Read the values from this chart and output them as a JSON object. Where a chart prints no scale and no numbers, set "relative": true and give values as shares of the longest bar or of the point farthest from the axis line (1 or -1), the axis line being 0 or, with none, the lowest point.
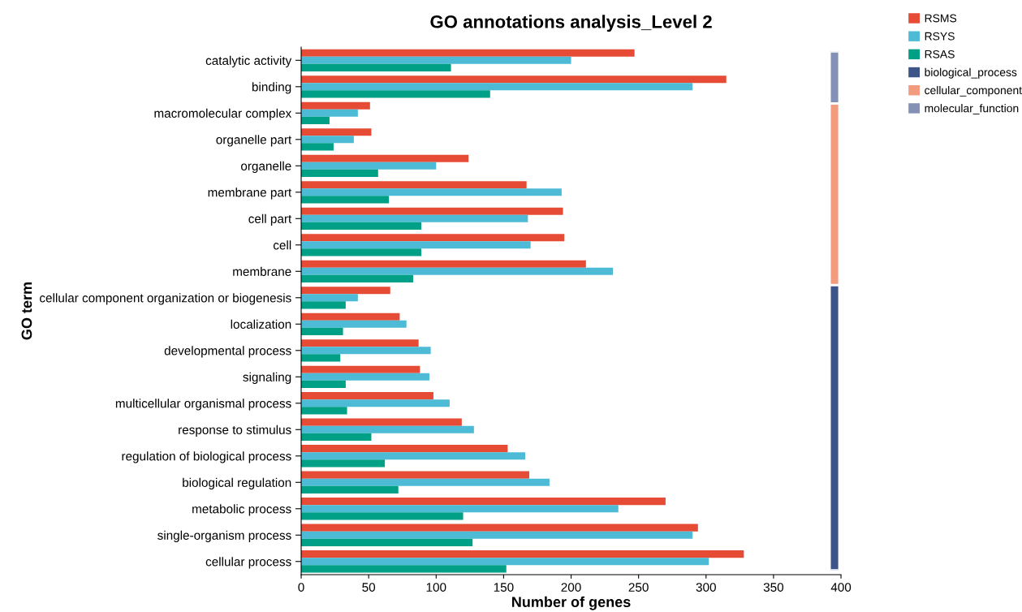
{
  "chart_data": [
    {
      "type": "bar",
      "orientation": "horizontal",
      "title": "GO annotations analysis_Level 2",
      "xlabel": "Number of genes",
      "ylabel": "GO term",
      "categories": [
        "catalytic activity",
        "binding",
        "macromolecular complex",
        "organelle part",
        "organelle",
        "membrane part",
        "cell part",
        "cell",
        "membrane",
        "cellular component organization or biogenesis",
        "localization",
        "developmental process",
        "signaling",
        "multicellular organismal process",
        "response to stimulus",
        "regulation of biological process",
        "biological regulation",
        "metabolic process",
        "single-organism process",
        "cellular process"
      ],
      "series": [
        {
          "name": "RSMS",
          "color": "#e64b35",
          "values": [
            247,
            315,
            51,
            52,
            124,
            167,
            194,
            195,
            211,
            66,
            73,
            87,
            88,
            98,
            119,
            153,
            169,
            270,
            294,
            328
          ]
        },
        {
          "name": "RSYS",
          "color": "#4dbbd5",
          "values": [
            200,
            290,
            42,
            39,
            100,
            193,
            168,
            170,
            231,
            42,
            78,
            96,
            95,
            110,
            128,
            166,
            184,
            235,
            290,
            302
          ]
        },
        {
          "name": "RSAS",
          "color": "#00a087",
          "values": [
            111,
            140,
            21,
            24,
            57,
            65,
            89,
            89,
            83,
            33,
            31,
            29,
            33,
            34,
            52,
            62,
            72,
            120,
            127,
            152
          ]
        }
      ],
      "xlim": [
        0,
        400
      ],
      "xticks": [
        0,
        50,
        100,
        150,
        200,
        250,
        300,
        350,
        400
      ],
      "legend": "top right"
    },
    {
      "type": "bar",
      "stacked": true,
      "relative": true,
      "categories": [
        null
      ],
      "series": [
        {
          "name": "biological_process",
          "color": "#3c5488",
          "values": [
            0.55
          ]
        },
        {
          "name": "cellular_component",
          "color": "#f39b7f",
          "values": [
            0.35
          ]
        },
        {
          "name": "molecular_function",
          "color": "#8491b4",
          "values": [
            0.1
          ]
        }
      ],
      "legend": "top right"
    }
  ]
}
